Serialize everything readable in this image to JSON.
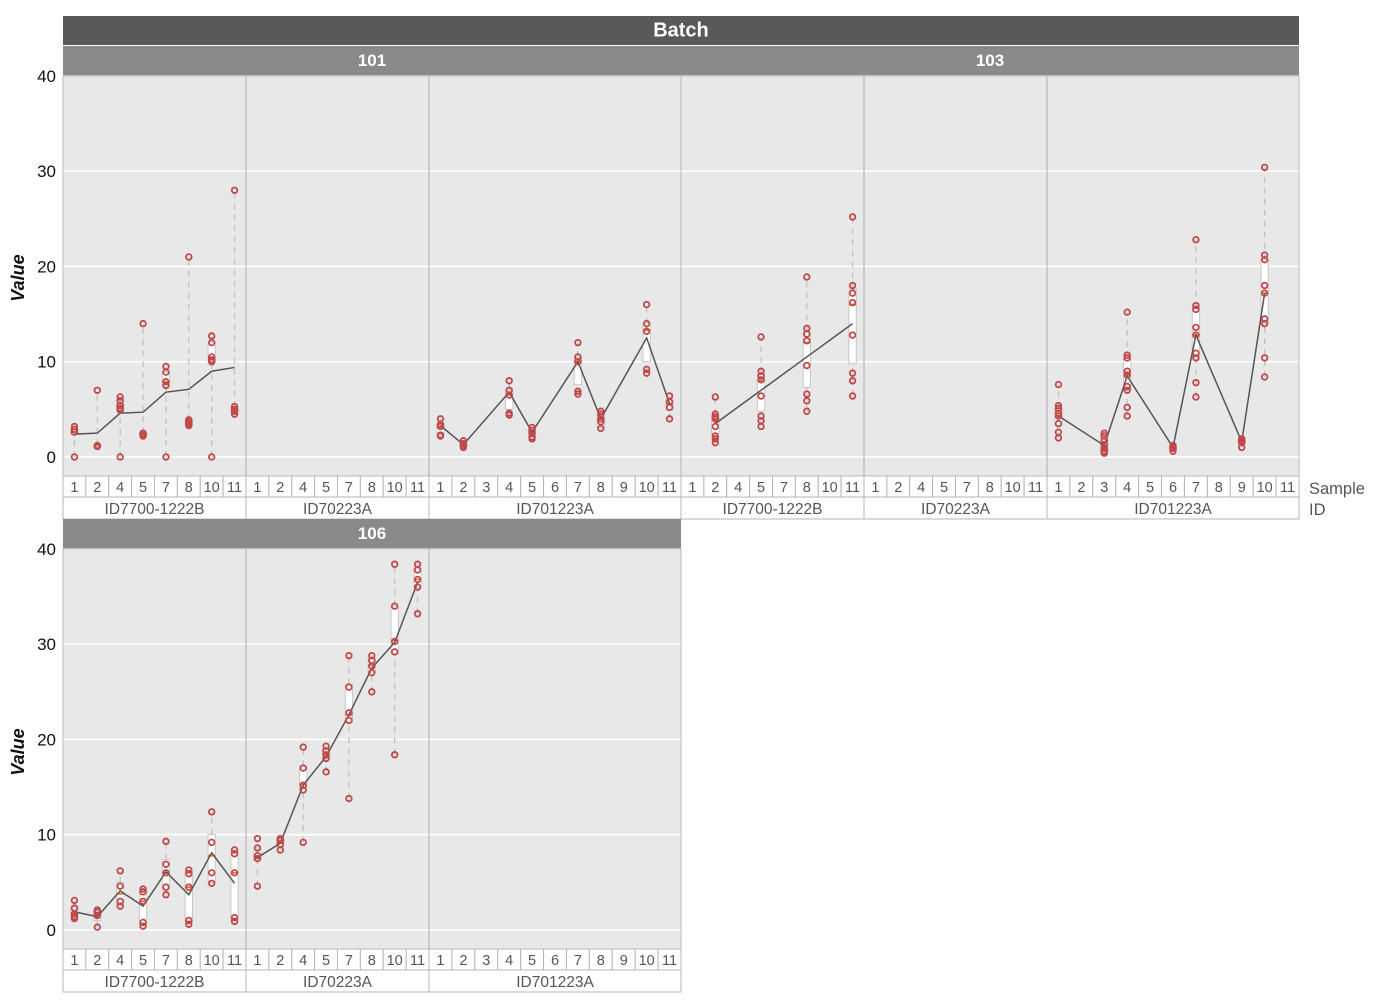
{
  "chart_data": {
    "type": "scatter",
    "title": "",
    "facet_title": "Batch",
    "ylabel": "Value",
    "ylim": [
      -2,
      40
    ],
    "yticks": [
      0,
      10,
      20,
      30,
      40
    ],
    "grid": true,
    "x_axis_level_labels": [
      "Sample",
      "ID"
    ],
    "id_groups": [
      {
        "id": "ID7700-1222B",
        "samples": [
          "1",
          "2",
          "4",
          "5",
          "7",
          "8",
          "10",
          "11"
        ]
      },
      {
        "id": "ID70223A",
        "samples": [
          "1",
          "2",
          "4",
          "5",
          "7",
          "8",
          "10",
          "11"
        ]
      },
      {
        "id": "ID701223A",
        "samples": [
          "1",
          "2",
          "3",
          "4",
          "5",
          "6",
          "7",
          "8",
          "9",
          "10",
          "11"
        ]
      }
    ],
    "id_groups_103": [
      {
        "id": "ID7700-1222B",
        "samples": [
          "1",
          "2",
          "4",
          "5",
          "7",
          "8",
          "10",
          "11"
        ]
      },
      {
        "id": "ID70223A",
        "samples": [
          "1",
          "2",
          "4",
          "5",
          "7",
          "8",
          "10",
          "11"
        ]
      },
      {
        "id": "ID701223A",
        "samples": [
          "1",
          "2",
          "3",
          "4",
          "5",
          "6",
          "7",
          "8",
          "9",
          "10",
          "11"
        ]
      }
    ],
    "panels": [
      {
        "batch": "101",
        "groups": [
          {
            "id": "ID7700-1222B",
            "cells": [
              {
                "s": "1",
                "pts": [
                  3.2,
                  2.9,
                  2.6,
                  0.0
                ],
                "q1": 2.4,
                "med": 2.6,
                "q3": 2.9,
                "lo": 0,
                "hi": 3.2,
                "mean": 2.4
              },
              {
                "s": "2",
                "pts": [
                  7.0,
                  1.2,
                  1.1
                ],
                "q1": 1.1,
                "med": 1.2,
                "q3": 1.3,
                "lo": 1.1,
                "hi": 7.0,
                "mean": 2.5
              },
              {
                "s": "4",
                "pts": [
                  6.3,
                  5.9,
                  5.4,
                  5.1,
                  4.9,
                  0.0
                ],
                "q1": 5.0,
                "med": 5.3,
                "q3": 5.8,
                "lo": 0,
                "hi": 6.3,
                "mean": 4.6
              },
              {
                "s": "5",
                "pts": [
                  14.0,
                  2.5,
                  2.3,
                  2.2
                ],
                "q1": 2.2,
                "med": 2.4,
                "q3": 2.5,
                "lo": 2.2,
                "hi": 14.0,
                "mean": 4.7
              },
              {
                "s": "7",
                "pts": [
                  9.5,
                  8.9,
                  7.9,
                  7.5,
                  0.0
                ],
                "q1": 7.4,
                "med": 7.9,
                "q3": 8.9,
                "lo": 0,
                "hi": 9.5,
                "mean": 6.8
              },
              {
                "s": "8",
                "pts": [
                  21.0,
                  3.9,
                  3.7,
                  3.5,
                  3.3
                ],
                "q1": 3.4,
                "med": 3.6,
                "q3": 3.9,
                "lo": 3.3,
                "hi": 21.0,
                "mean": 7.1
              },
              {
                "s": "10",
                "pts": [
                  12.7,
                  12.0,
                  10.5,
                  10.2,
                  10.0,
                  0.0
                ],
                "q1": 10.0,
                "med": 10.4,
                "q3": 12.0,
                "lo": 0,
                "hi": 12.7,
                "mean": 9.0
              },
              {
                "s": "11",
                "pts": [
                  28.0,
                  5.3,
                  5.0,
                  4.8,
                  4.5
                ],
                "q1": 4.6,
                "med": 4.9,
                "q3": 5.2,
                "lo": 4.5,
                "hi": 28.0,
                "mean": 9.4
              }
            ]
          },
          {
            "id": "ID70223A",
            "cells": []
          },
          {
            "id": "ID701223A",
            "cells": [
              {
                "s": "1",
                "pts": [
                  4.0,
                  3.4,
                  3.2,
                  2.3,
                  2.2
                ],
                "q1": 2.3,
                "med": 3.2,
                "q3": 3.5,
                "lo": 2.2,
                "hi": 4.0,
                "mean": 3.3
              },
              {
                "s": "2",
                "pts": [
                  1.7,
                  1.4,
                  1.2,
                  1.0
                ],
                "q1": 1.1,
                "med": 1.3,
                "q3": 1.5,
                "lo": 1.0,
                "hi": 1.7,
                "mean": 1.3
              },
              {
                "s": "4",
                "pts": [
                  8.0,
                  7.0,
                  6.5,
                  4.6,
                  4.4
                ],
                "q1": 5.0,
                "med": 6.5,
                "q3": 7.0,
                "lo": 4.4,
                "hi": 8.0,
                "mean": 6.8
              },
              {
                "s": "5",
                "pts": [
                  3.1,
                  2.8,
                  2.5,
                  2.1,
                  1.9
                ],
                "q1": 2.2,
                "med": 2.6,
                "q3": 3.0,
                "lo": 1.9,
                "hi": 3.1,
                "mean": 2.6
              },
              {
                "s": "7",
                "pts": [
                  12.0,
                  10.5,
                  10.0,
                  6.9,
                  6.6
                ],
                "q1": 7.6,
                "med": 10.0,
                "q3": 10.5,
                "lo": 6.6,
                "hi": 12.0,
                "mean": 10.0
              },
              {
                "s": "8",
                "pts": [
                  4.8,
                  4.5,
                  4.0,
                  3.7,
                  3.0
                ],
                "q1": 3.1,
                "med": 4.1,
                "q3": 4.6,
                "lo": 3.0,
                "hi": 4.8,
                "mean": 4.0
              },
              {
                "s": "10",
                "pts": [
                  16.0,
                  14.0,
                  13.2,
                  9.2,
                  8.8
                ],
                "q1": 10.0,
                "med": 13.3,
                "q3": 14.0,
                "lo": 8.8,
                "hi": 16.0,
                "mean": 12.5
              },
              {
                "s": "11",
                "pts": [
                  6.4,
                  5.8,
                  5.2,
                  4.0
                ],
                "q1": 4.9,
                "med": 5.6,
                "q3": 6.0,
                "lo": 4.0,
                "hi": 6.4,
                "mean": 5.6
              }
            ]
          }
        ]
      },
      {
        "batch": "103",
        "groups": [
          {
            "id": "ID7700-1222B",
            "cells": [
              {
                "s": "2",
                "pts": [
                  6.3,
                  4.5,
                  4.2,
                  4.0,
                  3.2,
                  2.2,
                  1.9,
                  1.5
                ],
                "q1": 2.5,
                "med": 4.0,
                "q3": 4.4,
                "lo": 1.5,
                "hi": 6.3,
                "mean": 3.5
              },
              {
                "s": "5",
                "pts": [
                  12.6,
                  9.0,
                  8.5,
                  8.1,
                  6.4,
                  4.3,
                  3.8,
                  3.2
                ],
                "q1": 4.8,
                "med": 8.0,
                "q3": 8.7,
                "lo": 3.2,
                "hi": 12.6,
                "mean": 7.0
              },
              {
                "s": "8",
                "pts": [
                  18.9,
                  13.5,
                  12.9,
                  12.2,
                  9.6,
                  6.6,
                  5.9,
                  4.8
                ],
                "q1": 7.3,
                "med": 12.0,
                "q3": 13.2,
                "lo": 4.8,
                "hi": 18.9,
                "mean": 10.5
              },
              {
                "s": "11",
                "pts": [
                  25.2,
                  18.0,
                  17.2,
                  16.2,
                  12.8,
                  8.8,
                  8.0,
                  6.4
                ],
                "q1": 9.8,
                "med": 16.0,
                "q3": 17.6,
                "lo": 6.4,
                "hi": 25.2,
                "mean": 14.0
              }
            ]
          },
          {
            "id": "ID70223A",
            "cells": []
          },
          {
            "id": "ID701223A",
            "cells": [
              {
                "s": "1",
                "pts": [
                  7.6,
                  5.4,
                  5.1,
                  4.6,
                  4.3,
                  3.5,
                  2.6,
                  2.0
                ],
                "q1": 3.3,
                "med": 4.2,
                "q3": 5.1,
                "lo": 2.0,
                "hi": 7.6,
                "mean": 4.3
              },
              {
                "s": "3",
                "pts": [
                  2.5,
                  2.2,
                  1.7,
                  1.3,
                  0.9,
                  0.6,
                  0.4
                ],
                "q1": 0.5,
                "med": 0.8,
                "q3": 2.4,
                "lo": 0.4,
                "hi": 2.5,
                "mean": 1.2
              },
              {
                "s": "4",
                "pts": [
                  15.2,
                  10.7,
                  10.4,
                  9.0,
                  8.6,
                  7.4,
                  7.0,
                  5.2,
                  4.3
                ],
                "q1": 7.0,
                "med": 8.6,
                "q3": 10.4,
                "lo": 4.3,
                "hi": 15.2,
                "mean": 8.5
              },
              {
                "s": "6",
                "pts": [
                  1.2,
                  1.0,
                  0.9,
                  0.6
                ],
                "q1": 0.8,
                "med": 1.0,
                "q3": 1.1,
                "lo": 0.6,
                "hi": 1.2,
                "mean": 1.0
              },
              {
                "s": "7",
                "pts": [
                  22.8,
                  15.9,
                  15.5,
                  13.6,
                  12.8,
                  10.9,
                  10.4,
                  7.8,
                  6.3
                ],
                "q1": 10.5,
                "med": 12.8,
                "q3": 15.7,
                "lo": 6.3,
                "hi": 22.8,
                "mean": 12.8
              },
              {
                "s": "9",
                "pts": [
                  1.9,
                  1.7,
                  1.5,
                  1.0
                ],
                "q1": 1.4,
                "med": 1.7,
                "q3": 1.8,
                "lo": 1.0,
                "hi": 1.9,
                "mean": 1.6
              },
              {
                "s": "10",
                "pts": [
                  30.4,
                  21.2,
                  20.7,
                  18.0,
                  17.2,
                  14.5,
                  14.0,
                  10.4,
                  8.4
                ],
                "q1": 14.0,
                "med": 17.2,
                "q3": 20.7,
                "lo": 8.4,
                "hi": 30.4,
                "mean": 17.2
              }
            ]
          }
        ]
      },
      {
        "batch": "106",
        "groups": [
          {
            "id": "ID7700-1222B",
            "cells": [
              {
                "s": "1",
                "pts": [
                  3.1,
                  2.3,
                  1.7,
                  1.4,
                  1.2
                ],
                "q1": 1.3,
                "med": 1.8,
                "q3": 2.4,
                "lo": 1.2,
                "hi": 3.1,
                "mean": 1.9
              },
              {
                "s": "2",
                "pts": [
                  2.1,
                  1.9,
                  1.5,
                  0.3
                ],
                "q1": 1.0,
                "med": 1.6,
                "q3": 2.0,
                "lo": 0.3,
                "hi": 2.1,
                "mean": 1.4
              },
              {
                "s": "4",
                "pts": [
                  6.2,
                  4.6,
                  3.0,
                  2.5
                ],
                "q1": 2.6,
                "med": 3.8,
                "q3": 5.0,
                "lo": 2.5,
                "hi": 6.2,
                "mean": 4.1
              },
              {
                "s": "5",
                "pts": [
                  4.3,
                  4.0,
                  3.0,
                  0.8,
                  0.4
                ],
                "q1": 0.6,
                "med": 3.0,
                "q3": 4.1,
                "lo": 0.4,
                "hi": 4.3,
                "mean": 2.5
              },
              {
                "s": "7",
                "pts": [
                  9.3,
                  6.9,
                  6.0,
                  4.5,
                  3.7
                ],
                "q1": 4.2,
                "med": 6.0,
                "q3": 7.4,
                "lo": 3.7,
                "hi": 9.3,
                "mean": 6.1
              },
              {
                "s": "8",
                "pts": [
                  6.3,
                  5.9,
                  4.5,
                  1.0,
                  0.6
                ],
                "q1": 0.9,
                "med": 4.5,
                "q3": 6.1,
                "lo": 0.6,
                "hi": 6.3,
                "mean": 3.7
              },
              {
                "s": "10",
                "pts": [
                  12.4,
                  9.2,
                  6.0,
                  4.9
                ],
                "q1": 5.0,
                "med": 7.8,
                "q3": 10.0,
                "lo": 4.9,
                "hi": 12.4,
                "mean": 8.1
              },
              {
                "s": "11",
                "pts": [
                  8.4,
                  8.0,
                  6.0,
                  1.3,
                  0.9
                ],
                "q1": 1.1,
                "med": 6.0,
                "q3": 8.2,
                "lo": 0.9,
                "hi": 8.4,
                "mean": 4.9
              }
            ]
          },
          {
            "id": "ID70223A",
            "cells": [
              {
                "s": "1",
                "pts": [
                  9.6,
                  8.6,
                  7.8,
                  7.5,
                  4.6
                ],
                "q1": 7.3,
                "med": 7.7,
                "q3": 8.4,
                "lo": 4.6,
                "hi": 9.6,
                "mean": 7.6
              },
              {
                "s": "2",
                "pts": [
                  9.6,
                  9.4,
                  9.0,
                  8.4
                ],
                "q1": 8.7,
                "med": 9.1,
                "q3": 9.5,
                "lo": 8.4,
                "hi": 9.6,
                "mean": 9.1
              },
              {
                "s": "4",
                "pts": [
                  19.2,
                  17.0,
                  15.2,
                  14.7,
                  9.2
                ],
                "q1": 14.9,
                "med": 15.3,
                "q3": 17.2,
                "lo": 9.2,
                "hi": 19.2,
                "mean": 15.2
              },
              {
                "s": "5",
                "pts": [
                  19.3,
                  18.8,
                  18.4,
                  18.0,
                  16.6
                ],
                "q1": 18.0,
                "med": 18.5,
                "q3": 19.0,
                "lo": 16.6,
                "hi": 19.3,
                "mean": 18.2
              },
              {
                "s": "7",
                "pts": [
                  28.8,
                  25.5,
                  22.8,
                  22.0,
                  13.8
                ],
                "q1": 21.8,
                "med": 22.6,
                "q3": 25.8,
                "lo": 13.8,
                "hi": 28.8,
                "mean": 22.6
              },
              {
                "s": "8",
                "pts": [
                  28.8,
                  28.3,
                  27.7,
                  27.0,
                  25.0
                ],
                "q1": 27.0,
                "med": 27.8,
                "q3": 28.5,
                "lo": 25.0,
                "hi": 28.8,
                "mean": 27.5
              },
              {
                "s": "10",
                "pts": [
                  38.4,
                  34.0,
                  30.3,
                  29.2,
                  18.4
                ],
                "q1": 29.0,
                "med": 30.4,
                "q3": 34.0,
                "lo": 18.4,
                "hi": 38.4,
                "mean": 30.2
              },
              {
                "s": "11",
                "pts": [
                  38.4,
                  37.8,
                  36.8,
                  36.0,
                  33.2
                ],
                "q1": 36.0,
                "med": 36.8,
                "q3": 38.0,
                "lo": 33.2,
                "hi": 38.4,
                "mean": 36.5
              }
            ]
          },
          {
            "id": "ID701223A",
            "cells": []
          }
        ]
      }
    ]
  }
}
